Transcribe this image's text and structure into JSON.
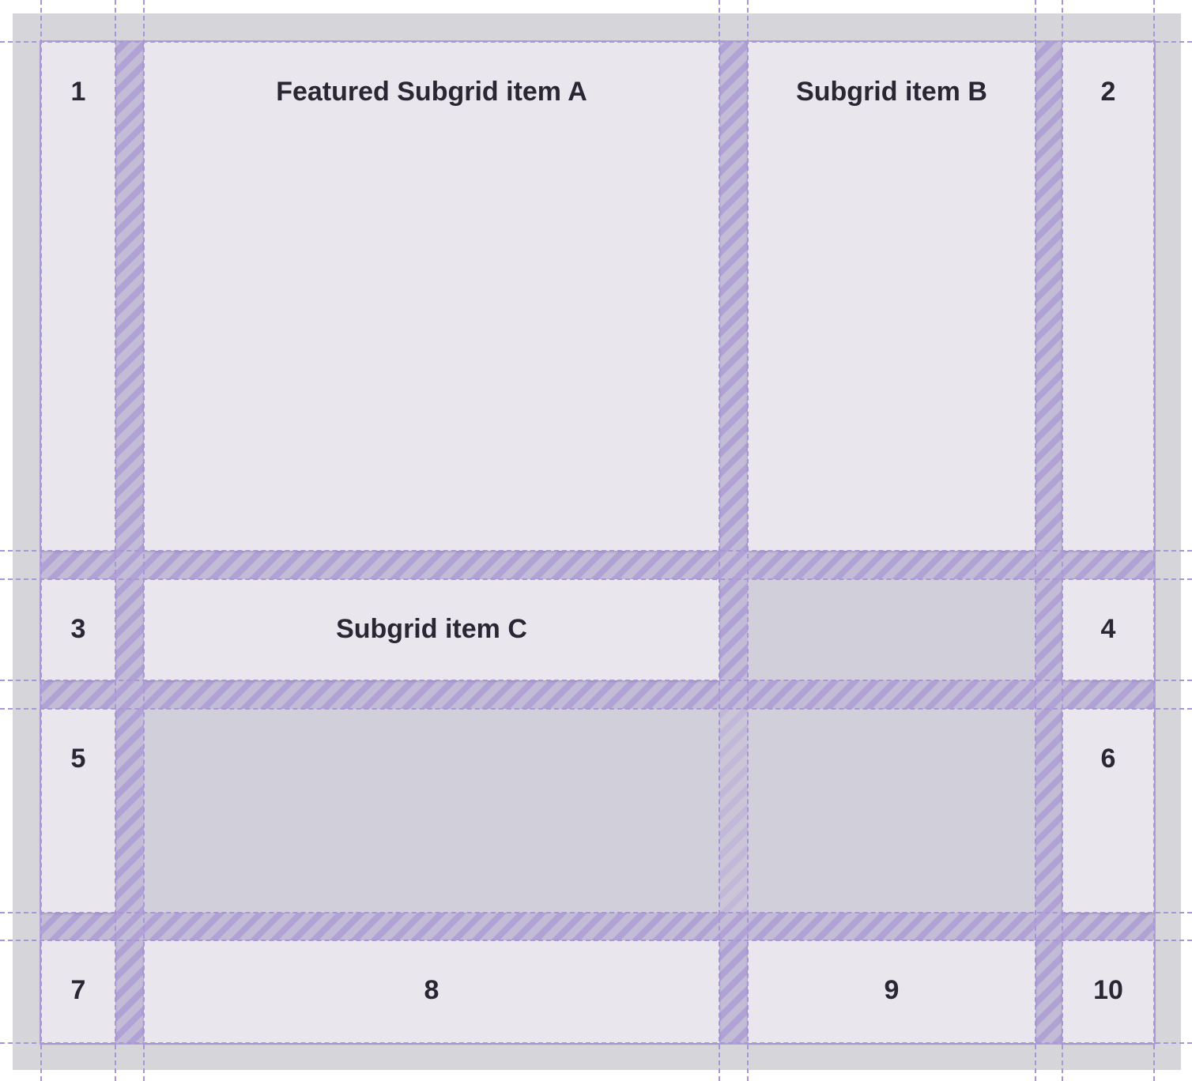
{
  "colors": {
    "cell": "#e9e6ee",
    "empty_cell": "#d1cfd9",
    "gap": "#c3bcd6",
    "grid_line": "#a996d8",
    "frame": "#d6d6da",
    "text": "#2a2633"
  },
  "items": {
    "n1": "1",
    "n2": "2",
    "n3": "3",
    "n4": "4",
    "n5": "5",
    "n6": "6",
    "n7": "7",
    "n8": "8",
    "n9": "9",
    "n10": "10",
    "a": "Featured Subgrid item A",
    "b": "Subgrid item B",
    "c": "Subgrid item C"
  }
}
